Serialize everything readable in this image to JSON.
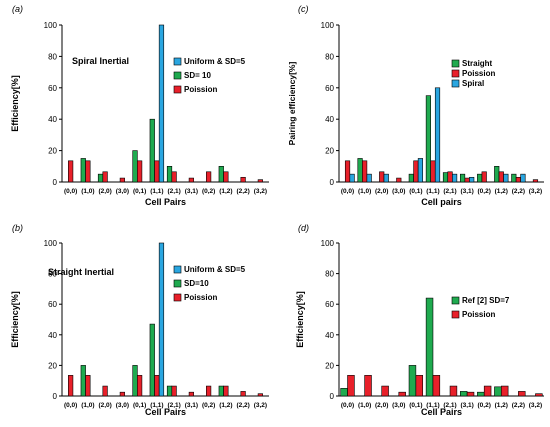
{
  "chart_data": [
    {
      "type": "bar",
      "panel_label": "(a)",
      "annotation": "Spiral Inertial",
      "ylabel": "Efficiency[%]",
      "xlabel": "Cell Pairs",
      "ylim": [
        0,
        100
      ],
      "yticks": [
        0,
        20,
        40,
        60,
        80,
        100
      ],
      "grid": false,
      "legend_position": "right",
      "categories": [
        "(0,0)",
        "(1,0)",
        "(2,0)",
        "(3,0)",
        "(0,1)",
        "(1,1)",
        "(2,1)",
        "(3,1)",
        "(0,2)",
        "(1,2)",
        "(2,2)",
        "(3,2)"
      ],
      "series": [
        {
          "name": "Uniform & SD=5",
          "color": "#2aa6e0",
          "values": [
            0,
            0,
            0,
            0,
            0,
            100,
            0,
            0,
            0,
            0,
            0,
            0
          ]
        },
        {
          "name": "SD= 10",
          "color": "#1faa4f",
          "values": [
            0,
            15,
            5,
            0,
            20,
            40,
            10,
            0,
            0,
            10,
            0,
            0
          ]
        },
        {
          "name": "Poission",
          "color": "#e8202a",
          "values": [
            13.5,
            13.5,
            6.5,
            2.5,
            13.5,
            13.5,
            6.5,
            2.5,
            6.5,
            6.5,
            3,
            1.5
          ]
        }
      ],
      "bar_order": [
        1,
        2,
        0
      ]
    },
    {
      "type": "bar",
      "panel_label": "(c)",
      "annotation": "",
      "ylabel": "Pairing efficiency[%]",
      "xlabel": "Cell pairs",
      "ylim": [
        0,
        100
      ],
      "yticks": [
        0,
        20,
        40,
        60,
        80,
        100
      ],
      "grid": false,
      "legend_position": "right",
      "categories": [
        "(0,0)",
        "(1,0)",
        "(2,0)",
        "(3,0)",
        "(0,1)",
        "(1,1)",
        "(2,1)",
        "(3,1)",
        "(0,2)",
        "(1,2)",
        "(2,2)",
        "(3,2)"
      ],
      "series": [
        {
          "name": "Straight",
          "color": "#1faa4f",
          "values": [
            0,
            15,
            0,
            0,
            5,
            55,
            6,
            5,
            5,
            10,
            5,
            0
          ]
        },
        {
          "name": "Poission",
          "color": "#e8202a",
          "values": [
            13.5,
            13.5,
            6.5,
            2.5,
            13.5,
            13.5,
            6.5,
            2.5,
            6.5,
            6.5,
            3,
            1.5
          ]
        },
        {
          "name": "Spiral",
          "color": "#2aa6e0",
          "values": [
            5,
            5,
            5,
            0,
            15,
            60,
            5,
            3,
            0,
            5,
            5,
            0
          ]
        }
      ],
      "bar_order": [
        0,
        1,
        2
      ]
    },
    {
      "type": "bar",
      "panel_label": "(b)",
      "annotation": "Straight Inertial",
      "ylabel": "Efficiency[%]",
      "xlabel": "Cell Pairs",
      "ylim": [
        0,
        100
      ],
      "yticks": [
        0,
        20,
        40,
        60,
        80,
        100
      ],
      "grid": false,
      "legend_position": "right",
      "categories": [
        "(0,0)",
        "(1,0)",
        "(2,0)",
        "(3,0)",
        "(0,1)",
        "(1,1)",
        "(2,1)",
        "(3,1)",
        "(0,2)",
        "(1,2)",
        "(2,2)",
        "(3,2)"
      ],
      "series": [
        {
          "name": "Uniform & SD=5",
          "color": "#2aa6e0",
          "values": [
            0,
            0,
            0,
            0,
            0,
            100,
            0,
            0,
            0,
            0,
            0,
            0
          ]
        },
        {
          "name": "SD=10",
          "color": "#1faa4f",
          "values": [
            0,
            20,
            0,
            0,
            20,
            47,
            6.5,
            0,
            0,
            6.5,
            0,
            0
          ]
        },
        {
          "name": "Poission",
          "color": "#e8202a",
          "values": [
            13.5,
            13.5,
            6.5,
            2.5,
            13.5,
            13.5,
            6.5,
            2.5,
            6.5,
            6.5,
            3,
            1.5
          ]
        }
      ],
      "bar_order": [
        1,
        2,
        0
      ]
    },
    {
      "type": "bar",
      "panel_label": "(d)",
      "annotation": "",
      "ylabel": "Efficiency[%]",
      "xlabel": "Cell Pairs",
      "ylim": [
        0,
        100
      ],
      "yticks": [
        0,
        20,
        40,
        60,
        80,
        100
      ],
      "grid": false,
      "legend_position": "right",
      "categories": [
        "(0,0)",
        "(1,0)",
        "(2,0)",
        "(3,0)",
        "(0,1)",
        "(1,1)",
        "(2,1)",
        "(3,1)",
        "(0,2)",
        "(1,2)",
        "(2,2)",
        "(3,2)"
      ],
      "series": [
        {
          "name": "Ref [2] SD=7",
          "color": "#1faa4f",
          "values": [
            5,
            0,
            0,
            0,
            20,
            64,
            0,
            3,
            2.5,
            6,
            0,
            0
          ]
        },
        {
          "name": "Poission",
          "color": "#e8202a",
          "values": [
            13.5,
            13.5,
            6.5,
            2.5,
            13.5,
            13.5,
            6.5,
            2.5,
            6.5,
            6.5,
            3,
            1.5
          ]
        }
      ],
      "bar_order": [
        0,
        1
      ]
    }
  ]
}
